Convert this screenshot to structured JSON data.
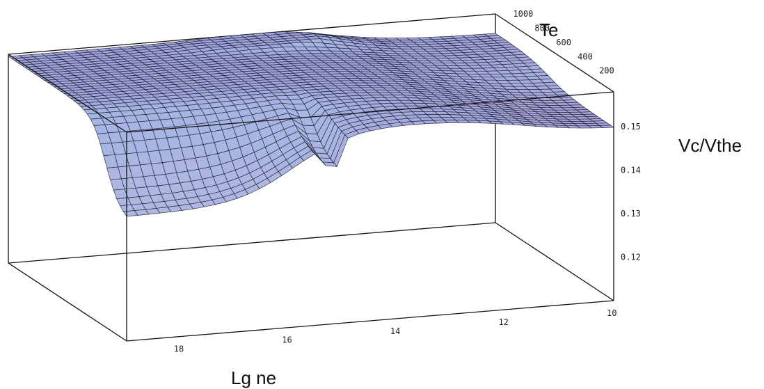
{
  "chart_data": {
    "type": "surface3d",
    "title": "",
    "x_axis": {
      "label": "Lg ne",
      "ticks": [
        "18",
        "16",
        "14",
        "12",
        "10"
      ],
      "range": [
        10,
        19
      ]
    },
    "y_axis": {
      "label": "Te",
      "ticks": [
        "1000",
        "800",
        "600",
        "400",
        "200"
      ],
      "range": [
        0,
        1100
      ]
    },
    "z_axis": {
      "label": "Vc/Vthe",
      "ticks": [
        "0.15",
        "0.14",
        "0.13",
        "0.12"
      ],
      "range": [
        0.11,
        0.158
      ]
    },
    "surface_color": "#9ea3dc",
    "surface_color_warm": "#d9b3d6",
    "surface_color_cool": "#a9c6ea",
    "grid": true,
    "bounding_box": true
  }
}
